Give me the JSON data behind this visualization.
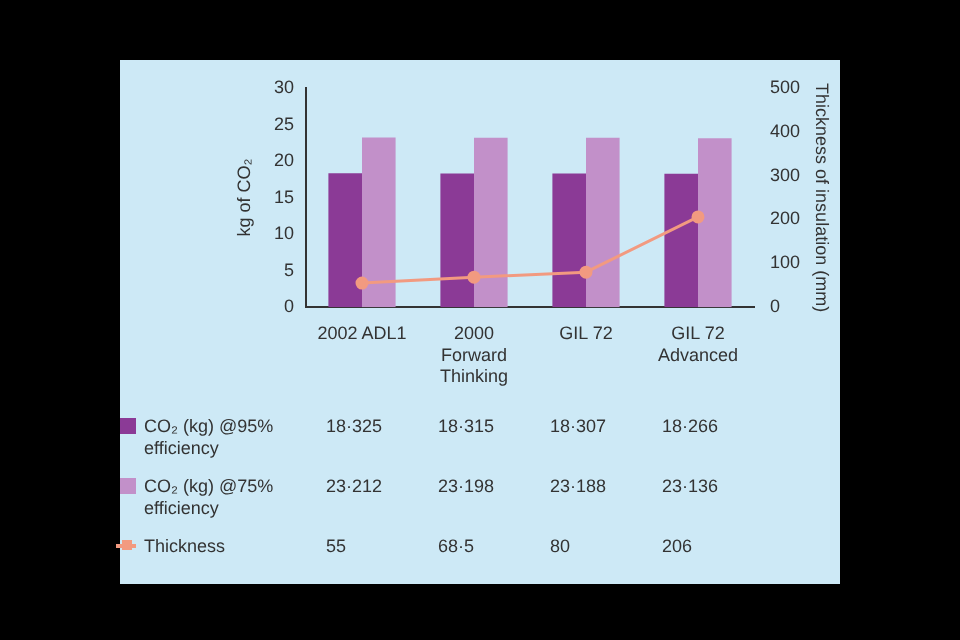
{
  "chart_data": {
    "type": "bar",
    "categories": [
      "2002 ADL1",
      "2000\nForward\nThinking",
      "GIL 72",
      "GIL 72\nAdvanced"
    ],
    "ylabel": "kg of CO₂",
    "y2label": "Thickness of insulation (mm)",
    "ylim": [
      0,
      30
    ],
    "yticks": [
      0,
      5,
      10,
      15,
      20,
      25,
      30
    ],
    "y2lim": [
      0,
      500
    ],
    "y2ticks": [
      0,
      100,
      200,
      300,
      400,
      500
    ],
    "grid": false,
    "legend": "bottom",
    "series": [
      {
        "name": "CO₂ (kg) @95% efficiency",
        "color": "#8b3a96",
        "values": [
          18.325,
          18.315,
          18.307,
          18.266
        ],
        "value_labels": [
          "18·325",
          "18·315",
          "18·307",
          "18·266"
        ]
      },
      {
        "name": "CO₂ (kg) @75% efficiency",
        "color": "#c290c9",
        "values": [
          23.212,
          23.198,
          23.188,
          23.136
        ],
        "value_labels": [
          "23·212",
          "23·198",
          "23·188",
          "23·136"
        ]
      },
      {
        "name": "Thickness",
        "type": "line",
        "axis": "y2",
        "marker": "circle",
        "color": "#f29a80",
        "values": [
          55,
          68.5,
          80,
          206
        ],
        "value_labels": [
          "55",
          "68·5",
          "80",
          "206"
        ]
      }
    ]
  }
}
